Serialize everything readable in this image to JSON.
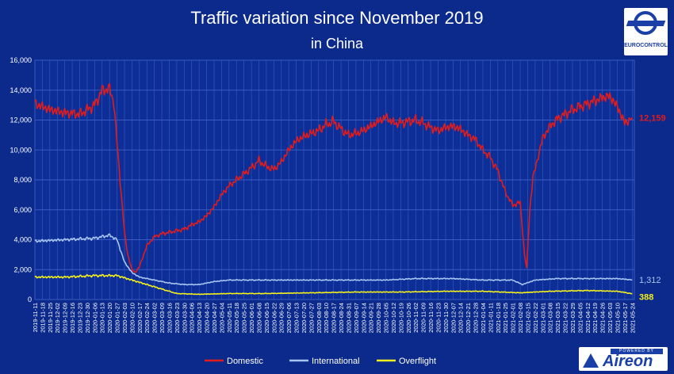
{
  "header": {
    "title": "Traffic variation since November 2019",
    "subtitle": "in China"
  },
  "logos": {
    "eurocontrol_text": "EUROCONTROL",
    "aireon_tag": "POWERED BY",
    "aireon_name": "Aireon"
  },
  "colors": {
    "background": "#0b2a8c",
    "grid": "#3a5cc0",
    "domestic": "#e31b1b",
    "international": "#a8c4f0",
    "overflight": "#f4f01c",
    "text": "#ffffff"
  },
  "chart_data": {
    "type": "line",
    "ylim": [
      0,
      16000
    ],
    "yticks": [
      "0",
      "2,000",
      "4,000",
      "6,000",
      "8,000",
      "10,000",
      "12,000",
      "14,000",
      "16,000"
    ],
    "x_range": [
      "2019-11-11",
      "2021-05-26"
    ],
    "xticks": [
      "2019-11-11",
      "2019-11-18",
      "2019-11-25",
      "2019-12-02",
      "2019-12-09",
      "2019-12-16",
      "2019-12-23",
      "2019-12-30",
      "2020-01-06",
      "2020-01-13",
      "2020-01-20",
      "2020-01-27",
      "2020-02-03",
      "2020-02-10",
      "2020-02-17",
      "2020-02-24",
      "2020-03-02",
      "2020-03-09",
      "2020-03-16",
      "2020-03-23",
      "2020-03-30",
      "2020-04-06",
      "2020-04-13",
      "2020-04-20",
      "2020-04-27",
      "2020-05-04",
      "2020-05-11",
      "2020-05-18",
      "2020-05-25",
      "2020-06-01",
      "2020-06-08",
      "2020-06-15",
      "2020-06-22",
      "2020-06-29",
      "2020-07-06",
      "2020-07-13",
      "2020-07-20",
      "2020-07-27",
      "2020-08-03",
      "2020-08-10",
      "2020-08-17",
      "2020-08-24",
      "2020-08-31",
      "2020-09-07",
      "2020-09-14",
      "2020-09-21",
      "2020-09-28",
      "2020-10-05",
      "2020-10-12",
      "2020-10-19",
      "2020-10-26",
      "2020-11-02",
      "2020-11-09",
      "2020-11-16",
      "2020-11-23",
      "2020-11-30",
      "2020-12-07",
      "2020-12-14",
      "2020-12-21",
      "2020-12-28",
      "2021-01-04",
      "2021-01-11",
      "2021-01-18",
      "2021-01-25",
      "2021-02-01",
      "2021-02-08",
      "2021-02-15",
      "2021-02-22",
      "2021-03-01",
      "2021-03-08",
      "2021-03-15",
      "2021-03-22",
      "2021-03-29",
      "2021-04-05",
      "2021-04-12",
      "2021-04-19",
      "2021-04-26",
      "2021-05-03",
      "2021-05-10",
      "2021-05-17",
      "2021-05-24"
    ],
    "grid": true,
    "legend": "bottom",
    "series": [
      {
        "name": "Domestic",
        "color": "#e31b1b",
        "last_label": "12,159",
        "points": [
          [
            "2019-11-11",
            13100
          ],
          [
            "2019-11-25",
            12700
          ],
          [
            "2019-12-09",
            12500
          ],
          [
            "2019-12-23",
            12400
          ],
          [
            "2020-01-06",
            13000
          ],
          [
            "2020-01-13",
            14000
          ],
          [
            "2020-01-20",
            14100
          ],
          [
            "2020-01-24",
            13200
          ],
          [
            "2020-01-27",
            10500
          ],
          [
            "2020-01-31",
            7000
          ],
          [
            "2020-02-03",
            4500
          ],
          [
            "2020-02-06",
            3000
          ],
          [
            "2020-02-10",
            2000
          ],
          [
            "2020-02-13",
            1800
          ],
          [
            "2020-02-17",
            2200
          ],
          [
            "2020-02-21",
            3000
          ],
          [
            "2020-02-24",
            3600
          ],
          [
            "2020-03-02",
            4200
          ],
          [
            "2020-03-09",
            4400
          ],
          [
            "2020-03-16",
            4500
          ],
          [
            "2020-03-23",
            4600
          ],
          [
            "2020-03-30",
            4700
          ],
          [
            "2020-04-06",
            5000
          ],
          [
            "2020-04-13",
            5200
          ],
          [
            "2020-04-20",
            5600
          ],
          [
            "2020-04-27",
            6200
          ],
          [
            "2020-05-04",
            7000
          ],
          [
            "2020-05-11",
            7600
          ],
          [
            "2020-05-18",
            8000
          ],
          [
            "2020-05-25",
            8400
          ],
          [
            "2020-06-01",
            8800
          ],
          [
            "2020-06-08",
            9300
          ],
          [
            "2020-06-15",
            8900
          ],
          [
            "2020-06-22",
            8700
          ],
          [
            "2020-06-29",
            9200
          ],
          [
            "2020-07-06",
            10000
          ],
          [
            "2020-07-13",
            10600
          ],
          [
            "2020-07-20",
            10900
          ],
          [
            "2020-07-27",
            11100
          ],
          [
            "2020-08-03",
            11300
          ],
          [
            "2020-08-10",
            11700
          ],
          [
            "2020-08-17",
            11900
          ],
          [
            "2020-08-24",
            11400
          ],
          [
            "2020-08-31",
            11000
          ],
          [
            "2020-09-07",
            11100
          ],
          [
            "2020-09-14",
            11300
          ],
          [
            "2020-09-21",
            11600
          ],
          [
            "2020-09-28",
            11900
          ],
          [
            "2020-10-05",
            12200
          ],
          [
            "2020-10-12",
            11800
          ],
          [
            "2020-10-19",
            11800
          ],
          [
            "2020-10-26",
            11900
          ],
          [
            "2020-11-02",
            12000
          ],
          [
            "2020-11-09",
            11800
          ],
          [
            "2020-11-16",
            11500
          ],
          [
            "2020-11-23",
            11300
          ],
          [
            "2020-11-30",
            11500
          ],
          [
            "2020-12-07",
            11600
          ],
          [
            "2020-12-14",
            11400
          ],
          [
            "2020-12-21",
            11000
          ],
          [
            "2020-12-28",
            10700
          ],
          [
            "2021-01-04",
            10000
          ],
          [
            "2021-01-11",
            9500
          ],
          [
            "2021-01-18",
            8600
          ],
          [
            "2021-01-25",
            7200
          ],
          [
            "2021-02-01",
            6300
          ],
          [
            "2021-02-08",
            6500
          ],
          [
            "2021-02-12",
            3000
          ],
          [
            "2021-02-14",
            2100
          ],
          [
            "2021-02-17",
            6000
          ],
          [
            "2021-02-20",
            8200
          ],
          [
            "2021-02-24",
            9300
          ],
          [
            "2021-03-01",
            10800
          ],
          [
            "2021-03-08",
            11600
          ],
          [
            "2021-03-15",
            12100
          ],
          [
            "2021-03-22",
            12400
          ],
          [
            "2021-03-29",
            12700
          ],
          [
            "2021-04-05",
            12900
          ],
          [
            "2021-04-12",
            13100
          ],
          [
            "2021-04-19",
            13300
          ],
          [
            "2021-04-26",
            13500
          ],
          [
            "2021-05-03",
            13600
          ],
          [
            "2021-05-10",
            12900
          ],
          [
            "2021-05-17",
            11800
          ],
          [
            "2021-05-24",
            12159
          ]
        ]
      },
      {
        "name": "International",
        "color": "#a8c4f0",
        "last_label": "1,312",
        "points": [
          [
            "2019-11-11",
            3900
          ],
          [
            "2019-12-09",
            4000
          ],
          [
            "2020-01-06",
            4100
          ],
          [
            "2020-01-20",
            4300
          ],
          [
            "2020-01-27",
            4000
          ],
          [
            "2020-02-03",
            2500
          ],
          [
            "2020-02-10",
            1800
          ],
          [
            "2020-02-17",
            1500
          ],
          [
            "2020-03-02",
            1300
          ],
          [
            "2020-03-16",
            1100
          ],
          [
            "2020-03-30",
            1000
          ],
          [
            "2020-04-13",
            1000
          ],
          [
            "2020-04-27",
            1200
          ],
          [
            "2020-05-11",
            1300
          ],
          [
            "2020-05-25",
            1300
          ],
          [
            "2020-06-08",
            1300
          ],
          [
            "2020-07-06",
            1300
          ],
          [
            "2020-08-03",
            1300
          ],
          [
            "2020-09-07",
            1300
          ],
          [
            "2020-10-05",
            1300
          ],
          [
            "2020-11-02",
            1400
          ],
          [
            "2020-12-07",
            1400
          ],
          [
            "2021-01-04",
            1300
          ],
          [
            "2021-02-01",
            1300
          ],
          [
            "2021-02-10",
            1000
          ],
          [
            "2021-02-22",
            1300
          ],
          [
            "2021-03-15",
            1400
          ],
          [
            "2021-04-12",
            1400
          ],
          [
            "2021-05-10",
            1400
          ],
          [
            "2021-05-24",
            1312
          ]
        ]
      },
      {
        "name": "Overflight",
        "color": "#f4f01c",
        "last_label": "388",
        "points": [
          [
            "2019-11-11",
            1500
          ],
          [
            "2019-12-09",
            1500
          ],
          [
            "2020-01-06",
            1600
          ],
          [
            "2020-01-27",
            1600
          ],
          [
            "2020-02-10",
            1300
          ],
          [
            "2020-02-24",
            1000
          ],
          [
            "2020-03-09",
            700
          ],
          [
            "2020-03-23",
            400
          ],
          [
            "2020-04-13",
            350
          ],
          [
            "2020-05-11",
            400
          ],
          [
            "2020-06-15",
            400
          ],
          [
            "2020-07-27",
            450
          ],
          [
            "2020-09-07",
            500
          ],
          [
            "2020-10-19",
            500
          ],
          [
            "2020-11-30",
            550
          ],
          [
            "2021-01-04",
            550
          ],
          [
            "2021-02-08",
            450
          ],
          [
            "2021-03-08",
            550
          ],
          [
            "2021-04-12",
            600
          ],
          [
            "2021-05-10",
            550
          ],
          [
            "2021-05-24",
            388
          ]
        ]
      }
    ]
  }
}
